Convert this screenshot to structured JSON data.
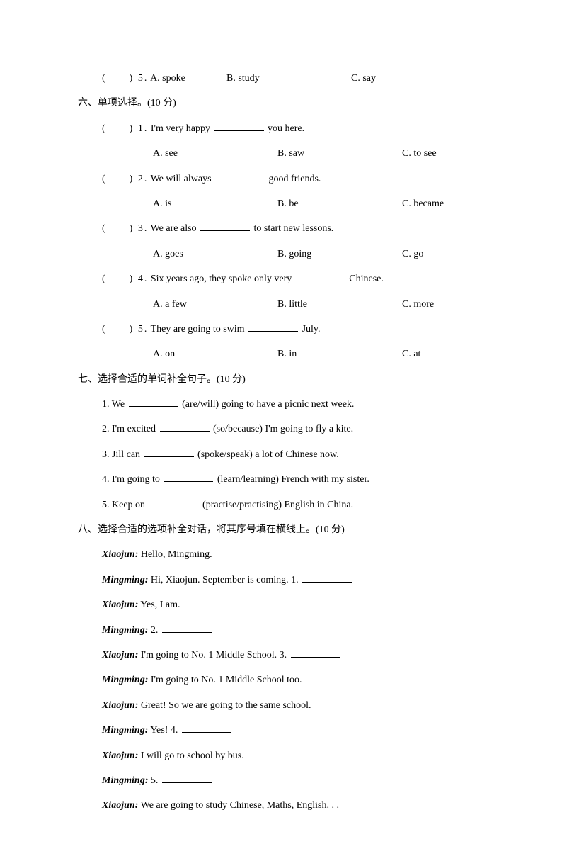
{
  "q5_prev": {
    "bracket": "(　　) 5.",
    "optA": "A. spoke",
    "optB": "B. study",
    "optC": "C. say"
  },
  "section6": {
    "title": "六、单项选择。(10 分)",
    "items": [
      {
        "bracket": "(　　) 1.",
        "text_before": "I'm very happy",
        "text_after": "you here.",
        "optA": "A. see",
        "optB": "B. saw",
        "optC": "C. to see"
      },
      {
        "bracket": "(　　) 2.",
        "text_before": "We will  always",
        "text_after": "good friends.",
        "optA": "A. is",
        "optB": "B. be",
        "optC": "C. became"
      },
      {
        "bracket": "(　　) 3.",
        "text_before": "We are also",
        "text_after": "to start new lessons.",
        "optA": "A. goes",
        "optB": "B. going",
        "optC": "C. go"
      },
      {
        "bracket": "(　　) 4.",
        "text_before": "Six years ago, they spoke only very",
        "text_after": "Chinese.",
        "optA": "A. a few",
        "optB": "B. little",
        "optC": "C. more"
      },
      {
        "bracket": "(　　) 5.",
        "text_before": "They are going  to swim",
        "text_after": "July.",
        "optA": "A. on",
        "optB": "B. in",
        "optC": "C. at"
      }
    ]
  },
  "section7": {
    "title": "七、选择合适的单词补全句子。(10 分)",
    "items": [
      {
        "num": "1.",
        "before": "We",
        "hint": "(are/will)  going  to have a picnic  next week."
      },
      {
        "num": "2.",
        "before": "I'm excited",
        "hint": "(so/because)  I'm going  to fly  a kite."
      },
      {
        "num": "3.",
        "before": "Jill  can",
        "hint": "(spoke/speak) a lot of Chinese  now."
      },
      {
        "num": "4.",
        "before": "I'm going  to",
        "hint": "(learn/learning)   French with my sister."
      },
      {
        "num": "5.",
        "before": "Keep on",
        "hint": "(practise/practising)   English  in China."
      }
    ]
  },
  "section8": {
    "title": "八、选择合适的选项补全对话，将其序号填在横线上。(10 分)",
    "lines": [
      {
        "speaker": "Xiaojun:",
        "text_before": "Hello,  Mingming.",
        "blank": false
      },
      {
        "speaker": "Mingming:",
        "text_before": "Hi,  Xiaojun.   September is coming.  1.",
        "blank": true
      },
      {
        "speaker": "Xiaojun:",
        "text_before": "Yes, I am.",
        "blank": false
      },
      {
        "speaker": "Mingming:",
        "text_before": "2.",
        "blank": true
      },
      {
        "speaker": "Xiaojun:",
        "text_before": "I'm going  to No. 1 Middle  School. 3.",
        "blank": true
      },
      {
        "speaker": "Mingming:",
        "text_before": "I'm going  to No. 1 Middle  School too.",
        "blank": false
      },
      {
        "speaker": "Xiaojun:",
        "text_before": "Great!  So we are going  to the same school.",
        "blank": false
      },
      {
        "speaker": "Mingming:",
        "text_before": "Yes! 4.",
        "blank": true
      },
      {
        "speaker": "Xiaojun:",
        "text_before": "I will  go to school by bus.",
        "blank": false
      },
      {
        "speaker": "Mingming:",
        "text_before": "5.",
        "blank": true
      },
      {
        "speaker": "Xiaojun:",
        "text_before": "We are going  to study Chinese,  Maths, English. . .",
        "blank": false
      }
    ]
  }
}
